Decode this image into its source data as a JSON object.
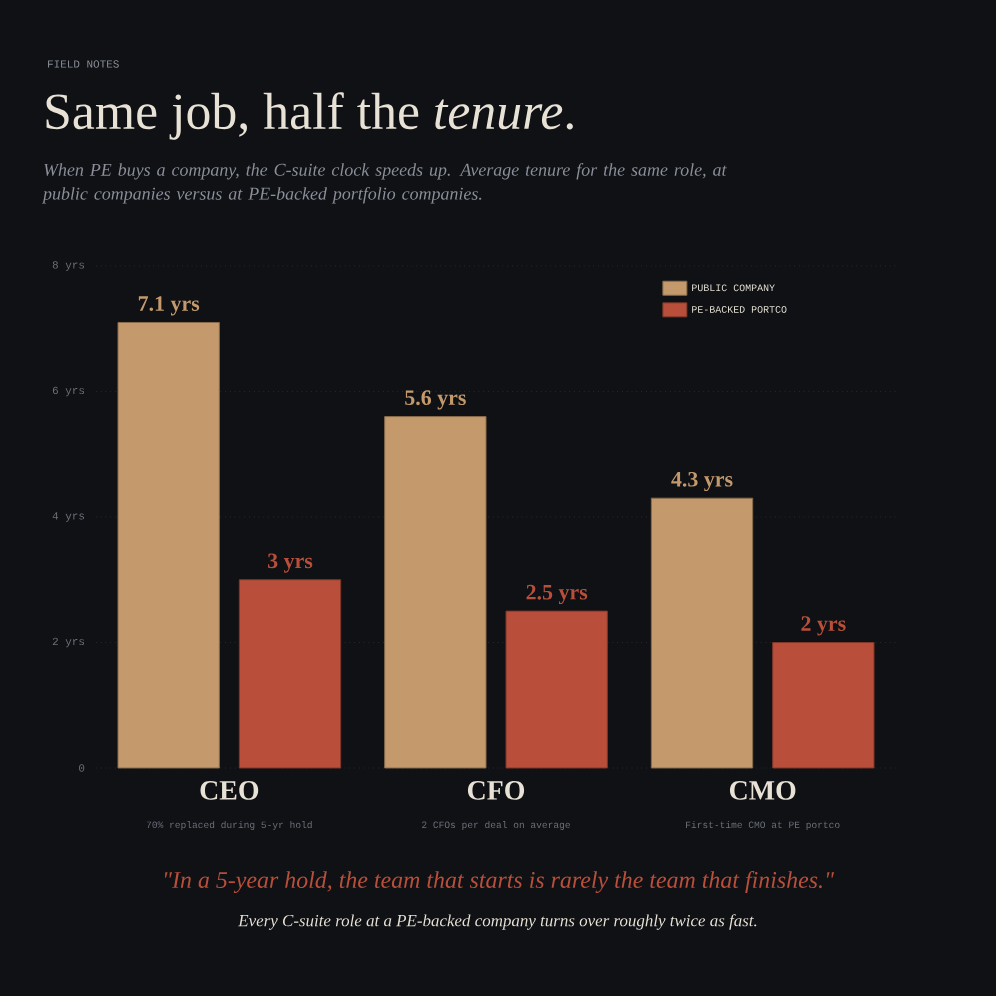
{
  "chart_data": {
    "type": "bar",
    "title": "Same job, half the *tenure*.",
    "subtitle": "When PE buys a company, the C-suite clock speeds up. Average tenure for the same role, at public companies versus at PE-backed portfolio companies.",
    "categories": [
      "CEO",
      "CFO",
      "CMO"
    ],
    "series": [
      {
        "name": "PUBLIC COMPANY",
        "color": "#c49a6c",
        "values": [
          7.1,
          5.6,
          4.3
        ],
        "value_labels": [
          "7.1 yrs",
          "5.6 yrs",
          "4.3 yrs"
        ]
      },
      {
        "name": "PE-BACKED PORTCO",
        "color": "#b94f3a",
        "values": [
          3,
          2.5,
          2
        ],
        "value_labels": [
          "3 yrs",
          "2.5 yrs",
          "2 yrs"
        ]
      }
    ],
    "ylim": [
      0,
      8
    ],
    "yticks": [
      0,
      {
        "value": 2,
        "label": "2 yrs"
      },
      {
        "value": 4,
        "label": "4 yrs"
      },
      {
        "value": 6,
        "label": "6 yrs"
      },
      {
        "value": 8,
        "label": "8 yrs"
      }
    ],
    "grid": "y",
    "legend": "top right",
    "annotations": [
      "FIELD NOTES",
      "70% replaced during 5-yr hold",
      "2 CFOs per deal on average",
      "First-time CMO at PE portco",
      "\"In a 5-year hold, the team that starts is rarely the team that finishes.\"",
      "Every C-suite role at a PE-backed company turns over roughly twice as fast."
    ]
  }
}
